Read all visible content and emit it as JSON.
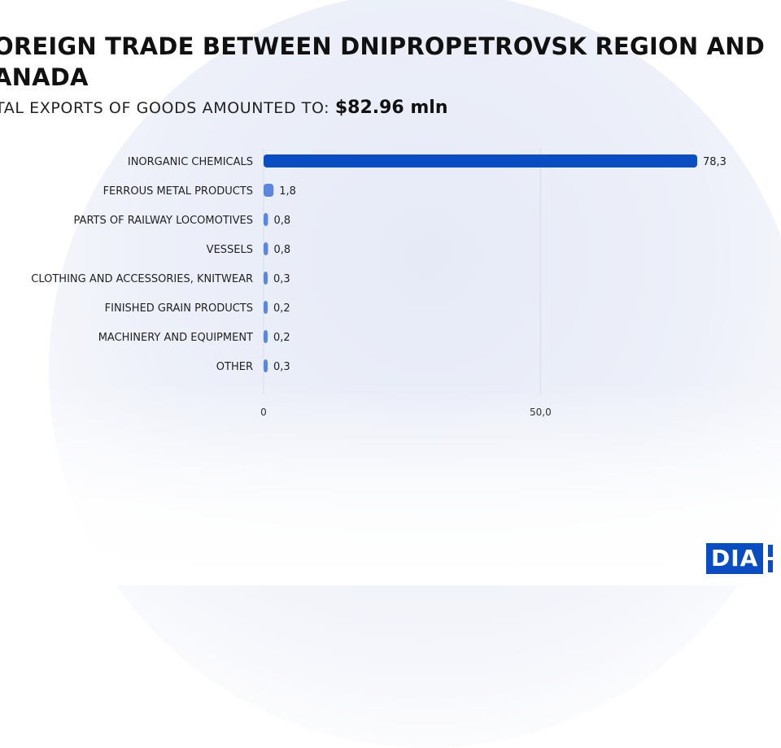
{
  "title": "OREIGN TRADE BETWEEN DNIPROPETROVSK REGION AND ANADA",
  "subtitle_prefix": "TAL EXPORTS OF GOODS AMOUNTED TO:",
  "subtitle_amount": "$82.96 mln",
  "logo_text": "DIA",
  "colors": {
    "bar_main": "#0a4cc2",
    "bar_small": "#5b86e0",
    "text": "#222222",
    "grid": "#d9dde8"
  },
  "chart_data": {
    "type": "bar",
    "orientation": "horizontal",
    "categories": [
      "INORGANIC CHEMICALS",
      "FERROUS METAL PRODUCTS",
      "PARTS OF RAILWAY LOCOMOTIVES",
      "VESSELS",
      "CLOTHING AND ACCESSORIES, KNITWEAR",
      "FINISHED GRAIN PRODUCTS",
      "MACHINERY AND EQUIPMENT",
      "OTHER"
    ],
    "values": [
      78.3,
      1.8,
      0.8,
      0.8,
      0.3,
      0.2,
      0.2,
      0.3
    ],
    "value_labels": [
      "78,3",
      "1,8",
      "0,8",
      "0,8",
      "0,3",
      "0,2",
      "0,2",
      "0,3"
    ],
    "x_ticks": [
      0,
      50
    ],
    "x_tick_labels": [
      "0",
      "50,0"
    ],
    "xlim": [
      0,
      78.3
    ],
    "grid": true
  }
}
